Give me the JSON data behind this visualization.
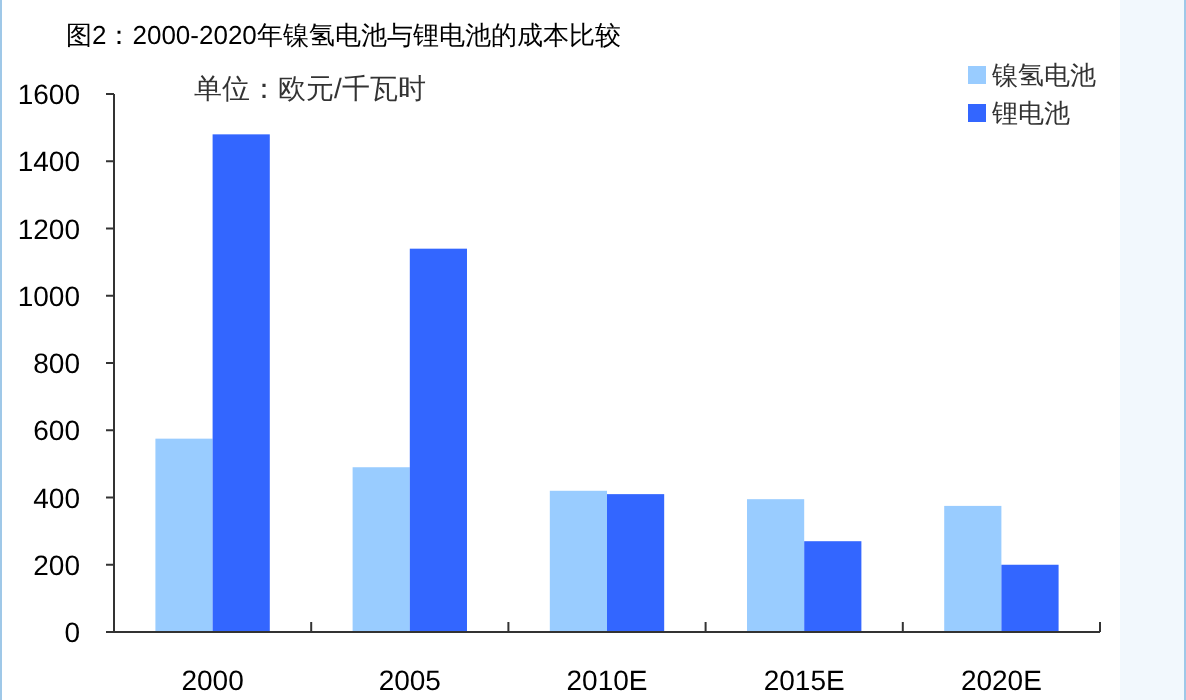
{
  "chart_data": {
    "type": "bar",
    "title": "图2：2000-2020年镍氢电池与锂电池的成本比较",
    "annotations": [
      "单位：欧元/千瓦时"
    ],
    "categories": [
      "2000",
      "2005",
      "2010E",
      "2015E",
      "2020E"
    ],
    "series": [
      {
        "name": "镍氢电池",
        "color": "#99ccff",
        "values": [
          575,
          490,
          420,
          395,
          375
        ]
      },
      {
        "name": "锂电池",
        "color": "#3366ff",
        "values": [
          1480,
          1140,
          410,
          270,
          200
        ]
      }
    ],
    "ylim": [
      0,
      1600
    ],
    "yticks": [
      0,
      200,
      400,
      600,
      800,
      1000,
      1200,
      1400,
      1600
    ],
    "grid": false,
    "legend": "top right"
  }
}
